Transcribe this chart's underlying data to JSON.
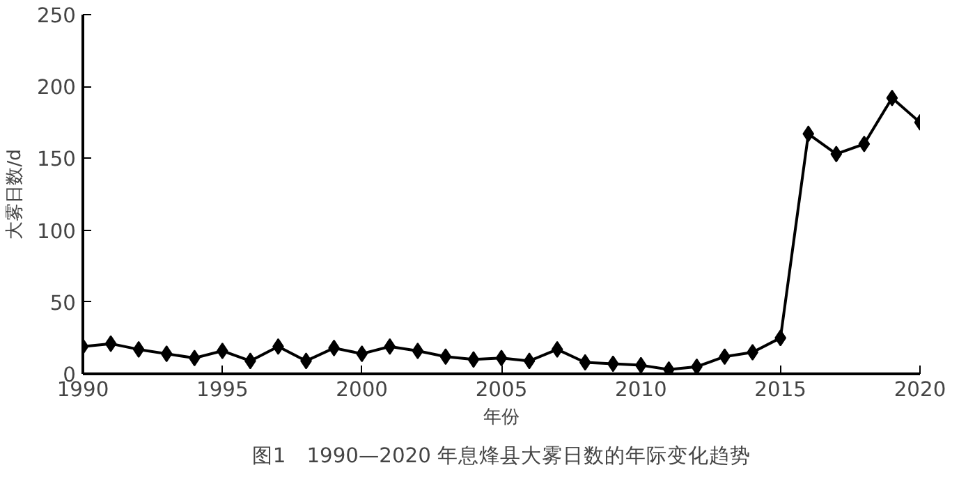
{
  "chart_data": {
    "type": "line",
    "xlabel": "年份",
    "ylabel": "大雾日数/d",
    "annotations": [
      "图1　1990—2020 年息烽县大雾日数的年际变化趋势"
    ],
    "x": [
      1990,
      1991,
      1992,
      1993,
      1994,
      1995,
      1996,
      1997,
      1998,
      1999,
      2000,
      2001,
      2002,
      2003,
      2004,
      2005,
      2006,
      2007,
      2008,
      2009,
      2010,
      2011,
      2012,
      2013,
      2014,
      2015,
      2016,
      2017,
      2018,
      2019,
      2020
    ],
    "series": [
      {
        "color": "#000000",
        "values": [
          19,
          21,
          17,
          14,
          11,
          16,
          9,
          19,
          9,
          18,
          14,
          19,
          16,
          12,
          10,
          11,
          9,
          17,
          8,
          7,
          6,
          3,
          5,
          12,
          15,
          25,
          167,
          153,
          160,
          192,
          175
        ]
      }
    ],
    "xlim": [
      1990,
      2020
    ],
    "xticks": [
      1990,
      1995,
      2000,
      2005,
      2010,
      2015,
      2020
    ],
    "ylim": [
      0,
      250
    ],
    "yticks": [
      0,
      50,
      100,
      150,
      200,
      250
    ],
    "grid": false,
    "marker": "diamond",
    "line_style": "solid"
  }
}
